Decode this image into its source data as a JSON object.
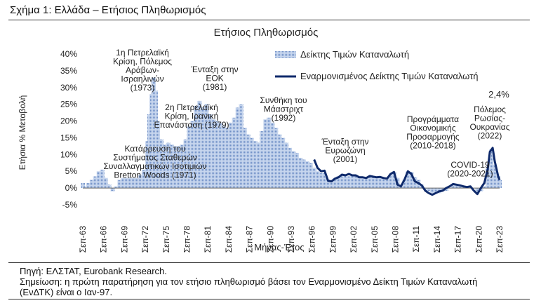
{
  "figure": {
    "title": "Σχήμα 1: Ελλάδα – Ετήσιος Πληθωρισμός",
    "source": "Πηγή: ΕΛΣΤΑΤ, Eurobank Research.",
    "note_line1": "Σημείωση: η πρώτη παρατήρηση για τον ετήσιο πληθωρισμό βάσει τον Εναρμονισμένο Δείκτη Τιμών Καταναλωτή",
    "note_line2": "(ΕνΔΤΚ) είναι ο Ιαν-97."
  },
  "chart_data": {
    "type": "bar",
    "title": "Ετήσιος Πληθωρισμός",
    "xlabel": "Μήνας-Έτος",
    "ylabel": "Ετήσια % Μεταβολή",
    "ylim": [
      -5,
      40
    ],
    "yticks": [
      "-5%",
      "0%",
      "5%",
      "10%",
      "15%",
      "20%",
      "25%",
      "30%",
      "35%",
      "40%"
    ],
    "grid": false,
    "legend_position": "top-right",
    "x_ticks": [
      "Σεπ-63",
      "Σεπ-66",
      "Σεπ-69",
      "Σεπ-72",
      "Σεπ-75",
      "Σεπ-78",
      "Σεπ-81",
      "Σεπ-84",
      "Σεπ-87",
      "Σεπ-90",
      "Σεπ-93",
      "Σεπ-96",
      "Σεπ-99",
      "Σεπ-02",
      "Σεπ-05",
      "Σεπ-08",
      "Σεπ-11",
      "Σεπ-14",
      "Σεπ-17",
      "Σεπ-20",
      "Σεπ-23"
    ],
    "series": [
      {
        "name": "Δείκτης Τιμών Καταναλωτή",
        "style": "bar",
        "color": "#9fb6dc",
        "x": [
          1963.7,
          1964.0,
          1964.5,
          1965.0,
          1965.5,
          1966.0,
          1966.5,
          1967.0,
          1967.5,
          1968.0,
          1968.5,
          1969.0,
          1969.5,
          1970.0,
          1970.5,
          1971.0,
          1971.5,
          1972.0,
          1972.5,
          1973.0,
          1973.3,
          1973.6,
          1973.9,
          1974.2,
          1974.5,
          1975.0,
          1975.5,
          1976.0,
          1976.5,
          1977.0,
          1977.5,
          1978.0,
          1978.5,
          1979.0,
          1979.5,
          1980.0,
          1980.5,
          1981.0,
          1981.5,
          1982.0,
          1982.5,
          1983.0,
          1983.5,
          1984.0,
          1984.5,
          1985.0,
          1985.5,
          1986.0,
          1986.5,
          1987.0,
          1987.5,
          1988.0,
          1988.5,
          1989.0,
          1989.5,
          1990.0,
          1990.5,
          1991.0,
          1991.5,
          1992.0,
          1992.5,
          1993.0,
          1993.5,
          1994.0,
          1994.5,
          1995.0,
          1995.5,
          1996.0,
          1996.5,
          1997.0,
          1997.5,
          1998.0,
          1998.5,
          1999.0,
          1999.5,
          2000.0,
          2000.5,
          2001.0,
          2001.5,
          2002.0,
          2002.5,
          2003.0,
          2003.5,
          2004.0,
          2004.5,
          2005.0,
          2005.5,
          2006.0,
          2006.5,
          2007.0,
          2007.5,
          2008.0,
          2008.5,
          2009.0,
          2009.5,
          2010.0,
          2010.5,
          2011.0,
          2011.5,
          2012.0,
          2012.5,
          2013.0,
          2013.5,
          2014.0,
          2014.5,
          2015.0,
          2015.5,
          2016.0,
          2016.5,
          2017.0,
          2017.5,
          2018.0,
          2018.5,
          2019.0,
          2019.5,
          2020.0,
          2020.5,
          2021.0,
          2021.5,
          2022.0,
          2022.5,
          2023.0,
          2023.5,
          2023.7
        ],
        "values": [
          1.5,
          0.5,
          1.5,
          2.5,
          3.5,
          5.0,
          5.5,
          3.0,
          1.0,
          -1.0,
          0.5,
          2.5,
          3.0,
          3.0,
          3.0,
          3.0,
          3.0,
          4.0,
          5.5,
          14.0,
          22.0,
          28.0,
          33.0,
          29.0,
          20.0,
          14.5,
          13.0,
          13.5,
          13.0,
          12.5,
          12.5,
          13.0,
          14.5,
          18.5,
          20.0,
          24.5,
          26.0,
          24.0,
          25.0,
          22.0,
          20.5,
          20.0,
          19.5,
          18.5,
          18.0,
          19.5,
          21.0,
          24.0,
          25.0,
          18.0,
          16.0,
          15.0,
          14.0,
          13.5,
          17.0,
          20.5,
          21.0,
          19.5,
          18.0,
          16.0,
          15.0,
          13.5,
          12.0,
          11.0,
          10.5,
          9.0,
          8.5,
          8.0,
          7.5,
          6.0,
          5.0,
          4.5,
          4.5,
          2.5,
          2.2,
          3.0,
          3.5,
          3.5,
          3.5,
          3.5,
          3.8,
          3.5,
          3.5,
          3.0,
          3.2,
          3.5,
          3.4,
          3.2,
          3.0,
          3.0,
          3.0,
          4.0,
          4.8,
          3.0,
          1.0,
          2.5,
          5.0,
          4.8,
          3.2,
          2.5,
          1.0,
          -0.5,
          -1.0,
          -1.5,
          -1.5,
          -1.5,
          -1.0,
          -0.8,
          0.0,
          1.0,
          1.0,
          0.5,
          0.5,
          0.5,
          0.2,
          0.0,
          -1.5,
          -1.0,
          0.5,
          6.0,
          11.5,
          7.0,
          3.5,
          2.4
        ]
      },
      {
        "name": "Εναρμονισμένος Δείκτης Τιμών Καταναλωτή",
        "style": "line",
        "color": "#0f2a6b",
        "x": [
          1997.0,
          1997.5,
          1998.0,
          1998.5,
          1999.0,
          1999.5,
          2000.0,
          2000.5,
          2001.0,
          2001.5,
          2002.0,
          2002.5,
          2003.0,
          2003.5,
          2004.0,
          2004.5,
          2005.0,
          2005.5,
          2006.0,
          2006.5,
          2007.0,
          2007.5,
          2008.0,
          2008.5,
          2009.0,
          2009.5,
          2010.0,
          2010.5,
          2011.0,
          2011.5,
          2012.0,
          2012.5,
          2013.0,
          2013.5,
          2014.0,
          2014.5,
          2015.0,
          2015.5,
          2016.0,
          2016.5,
          2017.0,
          2017.5,
          2018.0,
          2018.5,
          2019.0,
          2019.5,
          2020.0,
          2020.5,
          2021.0,
          2021.5,
          2022.0,
          2022.3,
          2022.7,
          2023.0,
          2023.5,
          2023.7
        ],
        "values": [
          8.5,
          6.0,
          5.0,
          5.2,
          2.2,
          2.0,
          2.8,
          3.2,
          4.0,
          3.8,
          4.2,
          3.8,
          3.8,
          3.2,
          3.2,
          3.0,
          3.6,
          3.4,
          3.2,
          3.3,
          3.0,
          2.8,
          4.2,
          4.8,
          1.0,
          0.5,
          2.5,
          5.0,
          4.2,
          2.0,
          1.5,
          0.8,
          -0.8,
          -1.5,
          -2.0,
          -1.5,
          -1.0,
          -0.8,
          0.0,
          0.5,
          1.2,
          1.0,
          0.8,
          0.5,
          0.3,
          0.5,
          -0.8,
          -1.8,
          0.0,
          1.5,
          5.8,
          10.8,
          12.0,
          8.0,
          3.5,
          2.4
        ]
      }
    ],
    "annotations": [
      {
        "id": "oil1",
        "lines": [
          "1η Πετρελαϊκή",
          "Κρίση, Πόλεμος",
          "Αράβων-",
          "Ισραηλινών",
          "(1973)"
        ]
      },
      {
        "id": "eok",
        "lines": [
          "Ένταξη στην",
          "ΕΟΚ",
          "(1981)"
        ]
      },
      {
        "id": "oil2",
        "lines": [
          "2η Πετρελαϊκή",
          "Κρίση, Ιρανική",
          "Επανάσταση (1979)"
        ]
      },
      {
        "id": "bw",
        "lines": [
          "Κατάρρευση του",
          "Συστήματος Σταθερών",
          "Συναλλαγματικών Ισοτιμιών",
          "Bretton Woods (1971)"
        ]
      },
      {
        "id": "maast",
        "lines": [
          "Συνθήκη του",
          "Μάαστριχτ",
          "(1992)"
        ]
      },
      {
        "id": "euro",
        "lines": [
          "Ένταξη στην",
          "Ευρωζώνη",
          "(2001)"
        ]
      },
      {
        "id": "progr",
        "lines": [
          "Προγράμματα",
          "Οικονομικής",
          "Προσαρμογής",
          "(2010-2018)"
        ]
      },
      {
        "id": "covid",
        "lines": [
          "COVID-19",
          "(2020-2021)"
        ]
      },
      {
        "id": "war",
        "lines": [
          "Πόλεμος",
          "Ρωσίας-",
          "Ουκρανίας",
          "(2022)"
        ]
      },
      {
        "id": "last",
        "lines": [
          "2,4%"
        ]
      }
    ]
  }
}
